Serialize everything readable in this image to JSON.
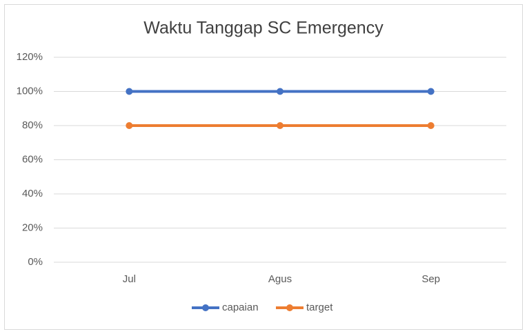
{
  "chart_data": {
    "type": "line",
    "title": "Waktu Tanggap SC Emergency",
    "categories": [
      "Jul",
      "Agus",
      "Sep"
    ],
    "series": [
      {
        "name": "capaian",
        "color": "#4472c4",
        "values": [
          100,
          100,
          100
        ]
      },
      {
        "name": "target",
        "color": "#ed7d31",
        "values": [
          80,
          80,
          80
        ]
      }
    ],
    "ylim": [
      0,
      120
    ],
    "yticks": [
      {
        "value": 0,
        "label": "0%"
      },
      {
        "value": 20,
        "label": "20%"
      },
      {
        "value": 40,
        "label": "40%"
      },
      {
        "value": 60,
        "label": "60%"
      },
      {
        "value": 80,
        "label": "80%"
      },
      {
        "value": 100,
        "label": "100%"
      },
      {
        "value": 120,
        "label": "120%"
      }
    ],
    "grid": true,
    "legend": "bottom"
  }
}
